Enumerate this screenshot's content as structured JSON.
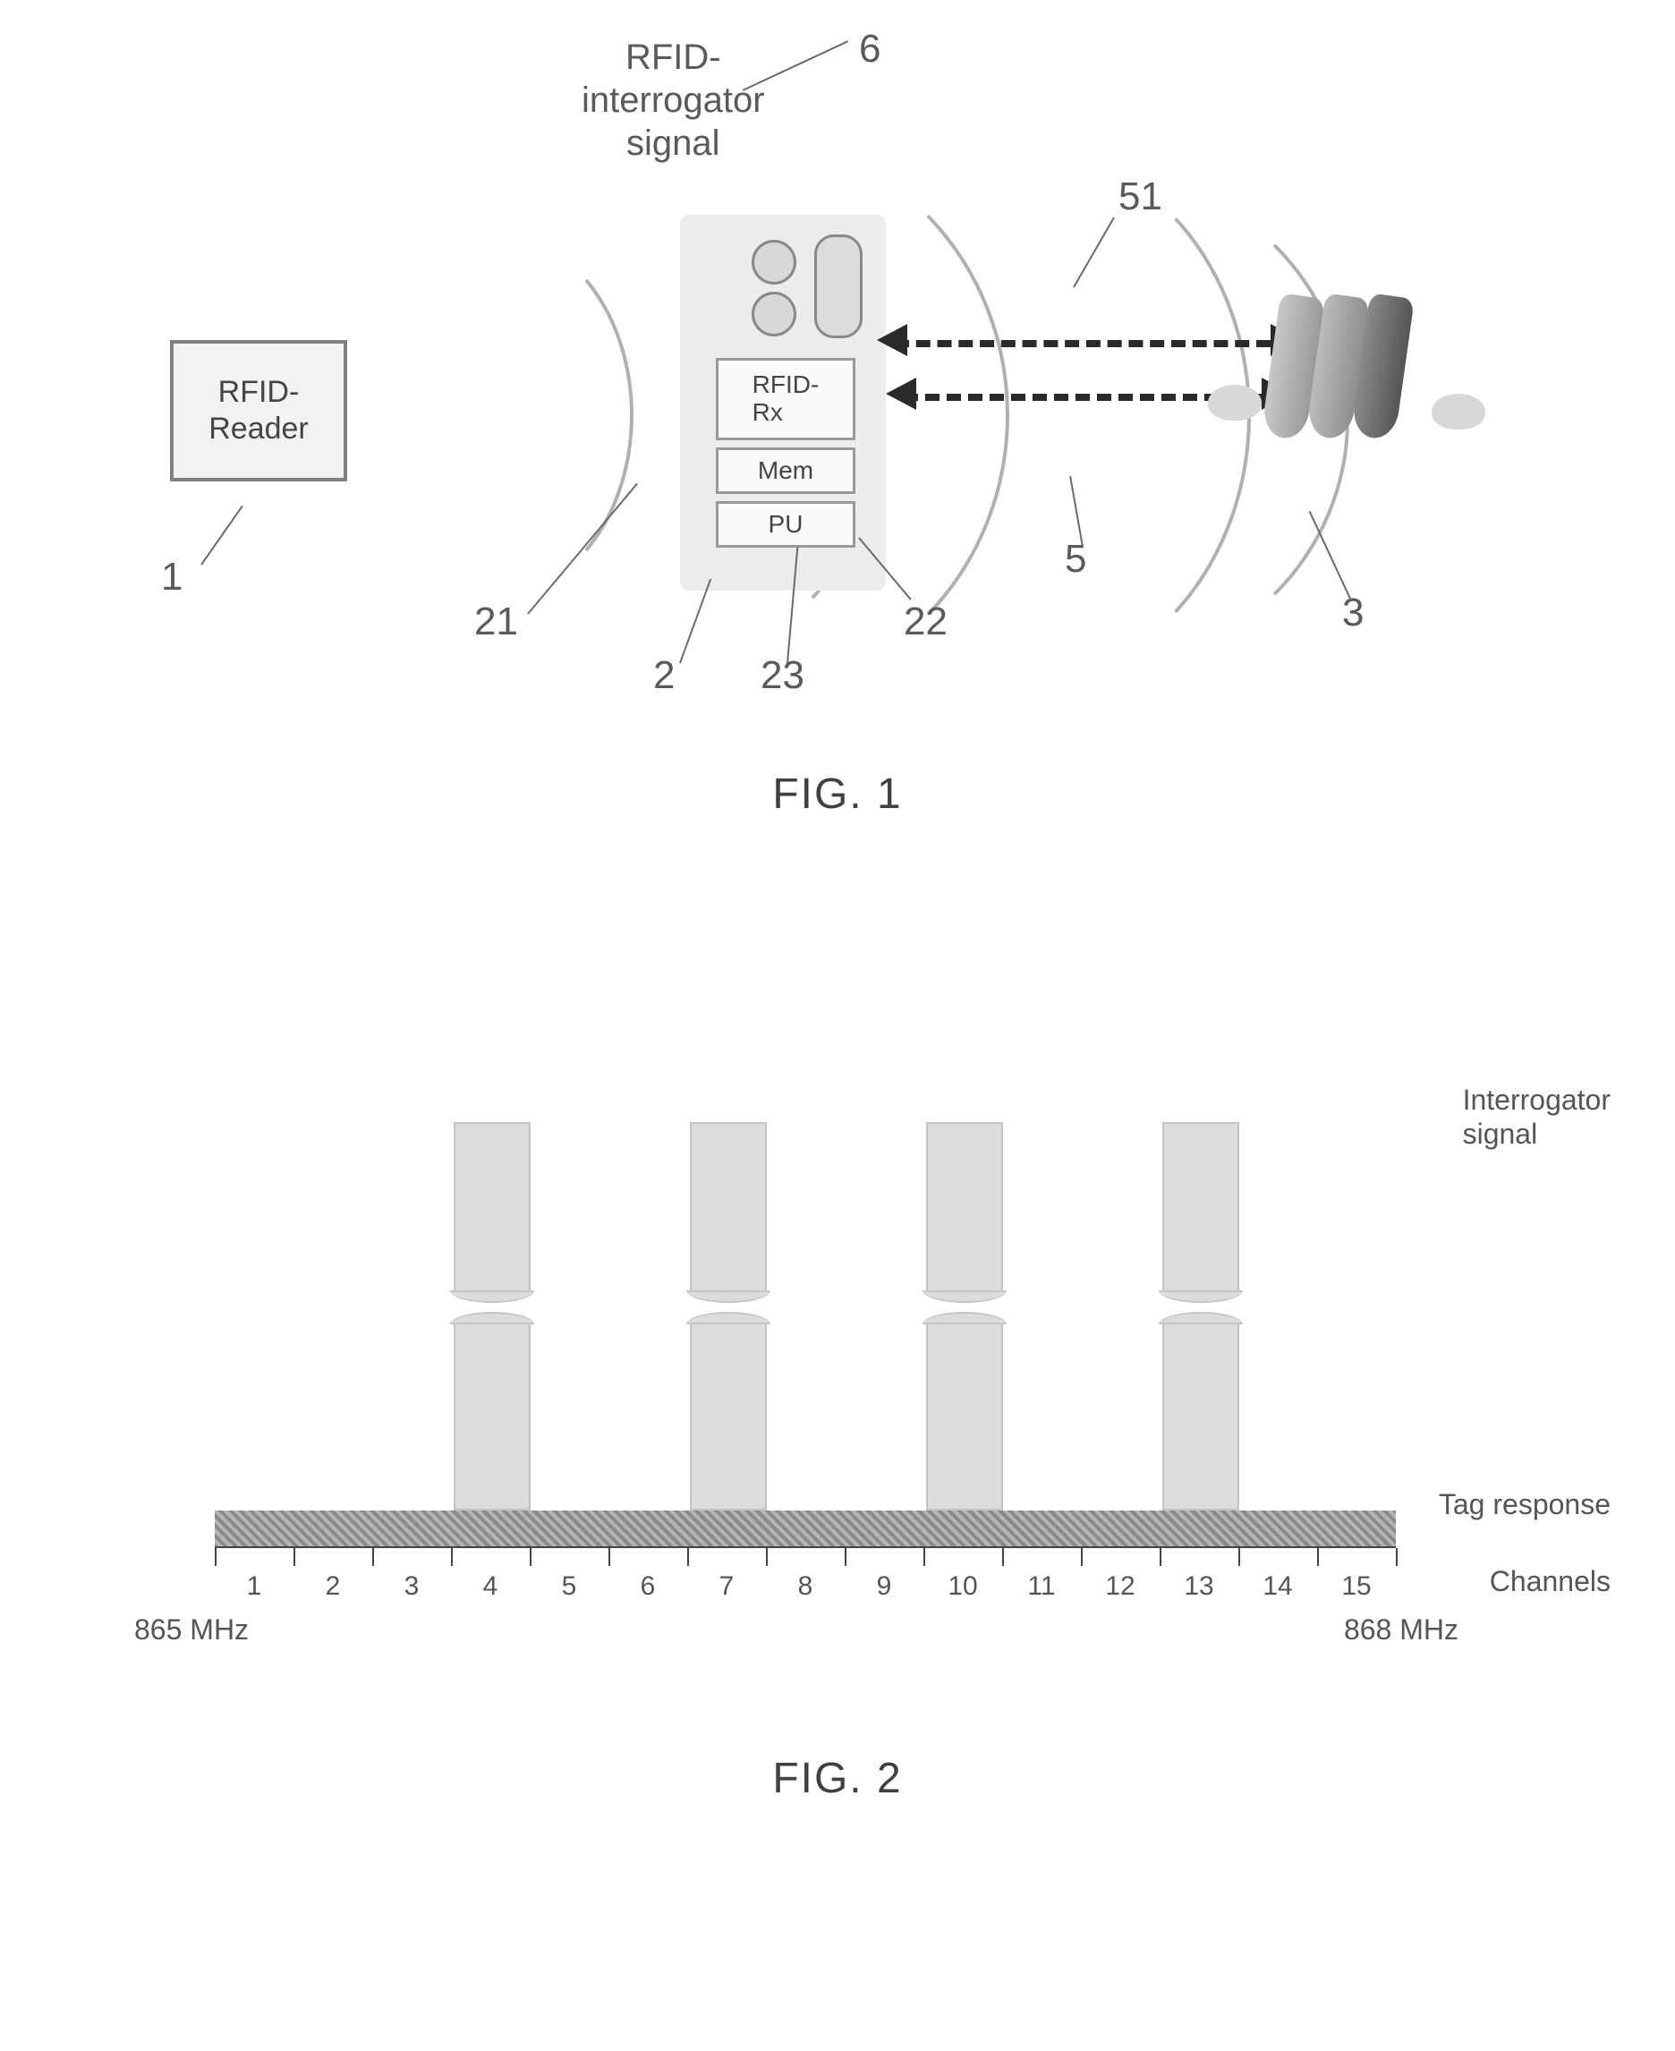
{
  "fig1": {
    "caption": "FIG. 1",
    "rfid_reader_label": "RFID-\nReader",
    "signal_label": "RFID-\ninterrogator\nsignal",
    "remote": {
      "rfid_rx": "RFID-\nRx",
      "mem": "Mem",
      "pu": "PU"
    },
    "refs": {
      "r1": "1",
      "r2": "2",
      "r3": "3",
      "r5": "5",
      "r6": "6",
      "r21": "21",
      "r22": "22",
      "r23": "23",
      "r51": "51"
    },
    "arc_color": "#b0b0b0",
    "leader_color": "#6a6a6a",
    "remote_bg": "#ececec",
    "reader_bg": "#f2f2f2"
  },
  "fig2": {
    "caption": "FIG. 2",
    "interrogator_label": "Interrogator\nsignal",
    "tag_label": "Tag response",
    "channels_label": "Channels",
    "freq_start": "865 MHz",
    "freq_end": "868 MHz",
    "channels": [
      "1",
      "2",
      "3",
      "4",
      "5",
      "6",
      "7",
      "8",
      "9",
      "10",
      "11",
      "12",
      "13",
      "14",
      "15"
    ],
    "bars_at_channels": [
      4,
      7,
      10,
      13
    ],
    "bar_color": "#dcdcdc",
    "tag_band_color_a": "#8a8a8a",
    "tag_band_color_b": "#b5b5b5",
    "tick_color": "#444444",
    "axis_fontsize": 30,
    "side_fontsize": 32,
    "n_channels": 15
  }
}
